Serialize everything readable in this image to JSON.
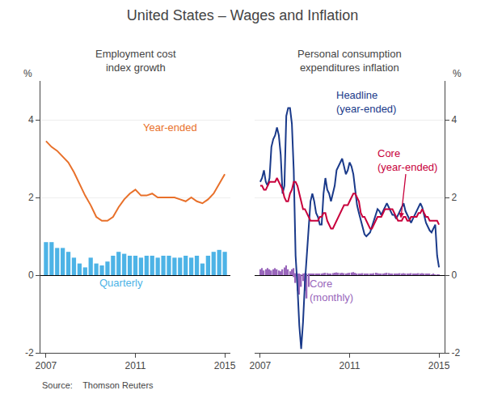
{
  "title": "United States – Wages and Inflation",
  "source": "Source:    Thomson Reuters",
  "chart_data": [
    {
      "type": "bar",
      "title": "Employment cost\nindex growth",
      "ylabel": "%",
      "xlim": [
        2006.75,
        2015.25
      ],
      "xticks": [
        2007,
        2011,
        2015
      ],
      "ylim": [
        -2,
        5
      ],
      "yticks": [
        -2,
        0,
        2,
        4
      ],
      "grid": "y",
      "series": [
        {
          "name": "Quarterly",
          "type": "bar",
          "color": "#4db3e6",
          "x": [
            2007.0,
            2007.25,
            2007.5,
            2007.75,
            2008.0,
            2008.25,
            2008.5,
            2008.75,
            2009.0,
            2009.25,
            2009.5,
            2009.75,
            2010.0,
            2010.25,
            2010.5,
            2010.75,
            2011.0,
            2011.25,
            2011.5,
            2011.75,
            2012.0,
            2012.25,
            2012.5,
            2012.75,
            2013.0,
            2013.25,
            2013.5,
            2013.75,
            2014.0,
            2014.25,
            2014.5,
            2014.75,
            2015.0
          ],
          "values": [
            0.85,
            0.85,
            0.7,
            0.7,
            0.6,
            0.45,
            0.3,
            0.2,
            0.45,
            0.3,
            0.25,
            0.35,
            0.5,
            0.6,
            0.55,
            0.5,
            0.5,
            0.45,
            0.5,
            0.5,
            0.45,
            0.5,
            0.5,
            0.45,
            0.45,
            0.5,
            0.45,
            0.5,
            0.3,
            0.5,
            0.6,
            0.65,
            0.6
          ]
        },
        {
          "name": "Year-ended",
          "type": "line",
          "color": "#e8702a",
          "x": [
            2007.0,
            2007.25,
            2007.5,
            2007.75,
            2008.0,
            2008.25,
            2008.5,
            2008.75,
            2009.0,
            2009.25,
            2009.5,
            2009.75,
            2010.0,
            2010.25,
            2010.5,
            2010.75,
            2011.0,
            2011.25,
            2011.5,
            2011.75,
            2012.0,
            2012.25,
            2012.5,
            2012.75,
            2013.0,
            2013.25,
            2013.5,
            2013.75,
            2014.0,
            2014.25,
            2014.5,
            2014.75,
            2015.0
          ],
          "values": [
            3.45,
            3.3,
            3.2,
            3.05,
            2.9,
            2.65,
            2.35,
            2.05,
            1.8,
            1.5,
            1.4,
            1.4,
            1.5,
            1.75,
            1.95,
            2.1,
            2.2,
            2.05,
            2.05,
            2.1,
            2.0,
            2.0,
            2.0,
            2.0,
            1.95,
            1.9,
            2.0,
            1.9,
            1.85,
            1.95,
            2.1,
            2.35,
            2.6
          ]
        }
      ]
    },
    {
      "type": "bar",
      "title": "Personal consumption\nexpenditures inflation",
      "ylabel": "%",
      "xlim": [
        2006.75,
        2015.25
      ],
      "xticks": [
        2007,
        2011,
        2015
      ],
      "ylim": [
        -2,
        5
      ],
      "yticks": [
        -2,
        0,
        2,
        4
      ],
      "grid": "y",
      "series": [
        {
          "name": "Core\n(monthly)",
          "type": "bar",
          "color": "#9966bb",
          "x": [
            2007.0,
            2007.083,
            2007.167,
            2007.25,
            2007.333,
            2007.417,
            2007.5,
            2007.583,
            2007.667,
            2007.75,
            2007.833,
            2007.917,
            2008.0,
            2008.083,
            2008.167,
            2008.25,
            2008.333,
            2008.417,
            2008.5,
            2008.583,
            2008.667,
            2008.75,
            2008.833,
            2008.917,
            2009.0,
            2009.083,
            2009.167,
            2009.25,
            2009.333,
            2009.417,
            2009.5,
            2009.583,
            2009.667,
            2009.75,
            2009.833,
            2009.917,
            2010.0,
            2010.083,
            2010.167,
            2010.25,
            2010.333,
            2010.417,
            2010.5,
            2010.583,
            2010.667,
            2010.75,
            2010.833,
            2010.917,
            2011.0,
            2011.083,
            2011.167,
            2011.25,
            2011.333,
            2011.417,
            2011.5,
            2011.583,
            2011.667,
            2011.75,
            2011.833,
            2011.917,
            2012.0,
            2012.083,
            2012.167,
            2012.25,
            2012.333,
            2012.417,
            2012.5,
            2012.583,
            2012.667,
            2012.75,
            2012.833,
            2012.917,
            2013.0,
            2013.083,
            2013.167,
            2013.25,
            2013.333,
            2013.417,
            2013.5,
            2013.583,
            2013.667,
            2013.75,
            2013.833,
            2013.917,
            2014.0,
            2014.083,
            2014.167,
            2014.25,
            2014.333,
            2014.417,
            2014.5,
            2014.583,
            2014.667,
            2014.75,
            2014.833,
            2014.917,
            2015.0,
            2008.5,
            2008.583,
            2008.667,
            2008.75,
            2008.833,
            2008.917,
            2009.0,
            2009.083,
            2009.167
          ],
          "values": [
            0.15,
            0.18,
            0.12,
            0.15,
            0.18,
            0.15,
            0.12,
            0.15,
            0.18,
            0.15,
            0.12,
            0.1,
            0.15,
            0.2,
            0.25,
            0.15,
            0.1,
            0.15,
            0.18,
            0.05,
            0.04,
            0.03,
            0.02,
            0.04,
            0.05,
            0.04,
            0.03,
            0.03,
            0.04,
            0.03,
            0.03,
            0.03,
            0.03,
            0.04,
            0.05,
            0.06,
            0.05,
            0.04,
            0.04,
            0.05,
            0.06,
            0.07,
            0.06,
            0.05,
            0.06,
            0.05,
            0.04,
            0.05,
            0.06,
            0.07,
            0.08,
            0.06,
            0.04,
            0.03,
            0.04,
            0.05,
            0.03,
            0.04,
            0.03,
            0.03,
            0.04,
            0.05,
            0.06,
            0.05,
            0.04,
            0.03,
            0.04,
            0.05,
            0.06,
            0.05,
            0.04,
            0.03,
            0.04,
            0.03,
            0.04,
            0.05,
            0.04,
            0.05,
            0.04,
            0.03,
            0.04,
            0.05,
            0.04,
            0.03,
            0.04,
            0.05,
            0.04,
            0.05,
            0.04,
            0.03,
            0.04,
            0.03,
            0.02,
            0.03,
            0.02,
            0.02,
            0.02,
            -0.05,
            -0.2,
            -0.4,
            -0.5,
            -0.3,
            -0.15,
            -0.4,
            -0.6,
            -0.3
          ]
        },
        {
          "name": "Headline\n(year-ended)",
          "type": "line",
          "color": "#1a3a8a",
          "x": [
            2007.0,
            2007.083,
            2007.167,
            2007.25,
            2007.333,
            2007.417,
            2007.5,
            2007.583,
            2007.667,
            2007.75,
            2007.833,
            2007.917,
            2008.0,
            2008.083,
            2008.167,
            2008.25,
            2008.333,
            2008.417,
            2008.5,
            2008.583,
            2008.667,
            2008.75,
            2008.833,
            2008.917,
            2009.0,
            2009.083,
            2009.167,
            2009.25,
            2009.333,
            2009.417,
            2009.5,
            2009.583,
            2009.667,
            2009.75,
            2009.833,
            2009.917,
            2010.0,
            2010.083,
            2010.167,
            2010.25,
            2010.333,
            2010.417,
            2010.5,
            2010.583,
            2010.667,
            2010.75,
            2010.833,
            2010.917,
            2011.0,
            2011.083,
            2011.167,
            2011.25,
            2011.333,
            2011.417,
            2011.5,
            2011.583,
            2011.667,
            2011.75,
            2011.833,
            2011.917,
            2012.0,
            2012.083,
            2012.167,
            2012.25,
            2012.333,
            2012.417,
            2012.5,
            2012.583,
            2012.667,
            2012.75,
            2012.833,
            2012.917,
            2013.0,
            2013.083,
            2013.167,
            2013.25,
            2013.333,
            2013.417,
            2013.5,
            2013.583,
            2013.667,
            2013.75,
            2013.833,
            2013.917,
            2014.0,
            2014.083,
            2014.167,
            2014.25,
            2014.333,
            2014.417,
            2014.5,
            2014.583,
            2014.667,
            2014.75,
            2014.833,
            2014.917,
            2015.0
          ],
          "values": [
            2.4,
            2.5,
            2.7,
            2.4,
            2.3,
            2.5,
            3.3,
            3.5,
            3.6,
            3.8,
            3.6,
            3.1,
            2.1,
            2.3,
            4.1,
            4.3,
            4.3,
            3.9,
            2.7,
            0.5,
            -0.3,
            -1.3,
            -1.9,
            -1.2,
            -0.2,
            0.5,
            1.1,
            1.9,
            2.1,
            1.9,
            1.6,
            1.5,
            1.3,
            1.3,
            2.1,
            2.5,
            2.2,
            2.1,
            1.9,
            2.1,
            2.3,
            2.7,
            2.8,
            2.9,
            3.0,
            2.8,
            2.6,
            2.7,
            2.9,
            2.8,
            2.6,
            2.2,
            1.8,
            1.6,
            1.4,
            1.2,
            1.05,
            1.0,
            1.05,
            1.1,
            1.25,
            1.4,
            1.6,
            1.7,
            1.65,
            1.55,
            1.65,
            1.75,
            1.85,
            1.75,
            1.65,
            1.55,
            1.55,
            1.45,
            1.55,
            1.65,
            1.75,
            1.85,
            1.65,
            1.55,
            1.45,
            1.35,
            1.45,
            1.55,
            1.65,
            1.75,
            1.85,
            1.75,
            1.55,
            1.35,
            1.25,
            1.15,
            1.1,
            1.2,
            1.3,
            0.5,
            0.2
          ]
        },
        {
          "name": "Core\n(year-ended)",
          "type": "line",
          "color": "#c8003c",
          "x": [
            2007.0,
            2007.083,
            2007.167,
            2007.25,
            2007.333,
            2007.417,
            2007.5,
            2007.583,
            2007.667,
            2007.75,
            2007.833,
            2007.917,
            2008.0,
            2008.083,
            2008.167,
            2008.25,
            2008.333,
            2008.417,
            2008.5,
            2008.583,
            2008.667,
            2008.75,
            2008.833,
            2008.917,
            2009.0,
            2009.083,
            2009.167,
            2009.25,
            2009.333,
            2009.417,
            2009.5,
            2009.583,
            2009.667,
            2009.75,
            2009.833,
            2009.917,
            2010.0,
            2010.083,
            2010.167,
            2010.25,
            2010.333,
            2010.417,
            2010.5,
            2010.583,
            2010.667,
            2010.75,
            2010.833,
            2010.917,
            2011.0,
            2011.083,
            2011.167,
            2011.25,
            2011.333,
            2011.417,
            2011.5,
            2011.583,
            2011.667,
            2011.75,
            2011.833,
            2011.917,
            2012.0,
            2012.083,
            2012.167,
            2012.25,
            2012.333,
            2012.417,
            2012.5,
            2012.583,
            2012.667,
            2012.75,
            2012.833,
            2012.917,
            2013.0,
            2013.083,
            2013.167,
            2013.25,
            2013.333,
            2013.417,
            2013.5,
            2013.583,
            2013.667,
            2013.75,
            2013.833,
            2013.917,
            2014.0,
            2014.083,
            2014.167,
            2014.25,
            2014.333,
            2014.417,
            2014.5,
            2014.583,
            2014.667,
            2014.75,
            2014.833,
            2014.917,
            2015.0
          ],
          "values": [
            2.3,
            2.3,
            2.2,
            2.2,
            2.3,
            2.4,
            2.4,
            2.4,
            2.4,
            2.5,
            2.4,
            2.3,
            2.2,
            2.0,
            1.9,
            1.9,
            2.1,
            2.2,
            2.4,
            2.4,
            2.3,
            2.1,
            1.9,
            1.7,
            1.7,
            1.6,
            1.5,
            1.4,
            1.4,
            1.4,
            1.4,
            1.4,
            1.5,
            1.5,
            1.6,
            1.6,
            1.4,
            1.3,
            1.2,
            1.2,
            1.3,
            1.4,
            1.5,
            1.6,
            1.7,
            1.8,
            1.8,
            1.8,
            1.9,
            2.0,
            2.1,
            2.1,
            2.0,
            1.9,
            1.6,
            1.5,
            1.5,
            1.4,
            1.3,
            1.2,
            1.2,
            1.3,
            1.4,
            1.5,
            1.5,
            1.5,
            1.6,
            1.7,
            1.7,
            1.7,
            1.7,
            1.7,
            1.6,
            1.5,
            1.4,
            1.4,
            1.4,
            1.5,
            1.5,
            1.4,
            1.4,
            1.5,
            1.5,
            1.5,
            1.5,
            1.6,
            1.6,
            1.7,
            1.6,
            1.5,
            1.5,
            1.4,
            1.4,
            1.4,
            1.4,
            1.4,
            1.3
          ]
        }
      ]
    }
  ]
}
